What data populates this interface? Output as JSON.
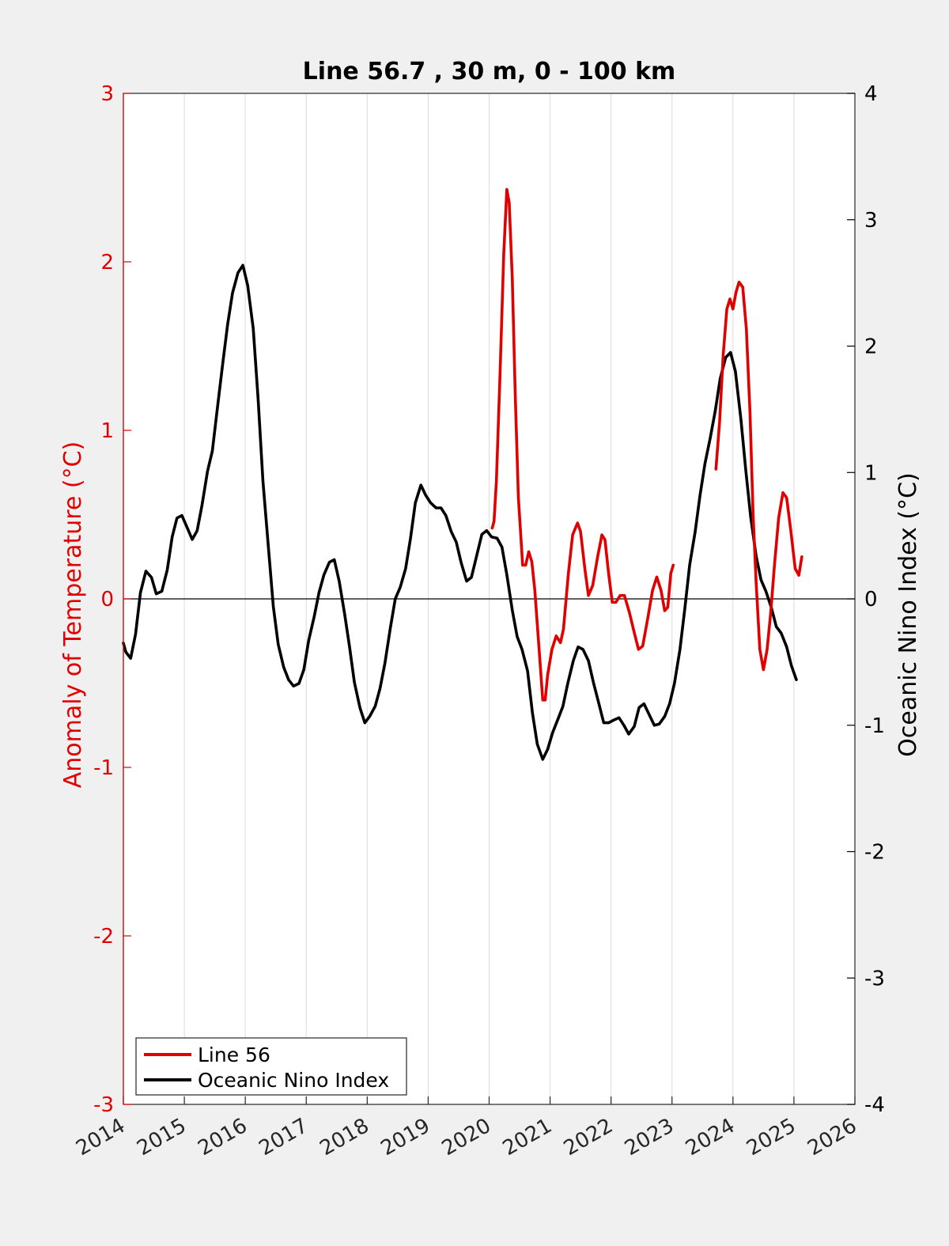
{
  "chart_data": {
    "type": "line",
    "title": "Line 56.7 , 30 m, 0 - 100 km",
    "ylabel_left": "Anomaly of Temperature (°C)",
    "ylabel_right": "Oceanic Nino Index (°C)",
    "xlim": [
      2014,
      2026
    ],
    "ylim_left": [
      -3,
      3
    ],
    "ylim_right": [
      -4,
      4
    ],
    "x_ticks": [
      "2014",
      "2015",
      "2016",
      "2017",
      "2018",
      "2019",
      "2020",
      "2021",
      "2022",
      "2023",
      "2024",
      "2025",
      "2026"
    ],
    "y_left_ticks": [
      "-3",
      "-2",
      "-1",
      "0",
      "1",
      "2",
      "3"
    ],
    "y_right_ticks": [
      "-4",
      "-3",
      "-2",
      "-1",
      "0",
      "1",
      "2",
      "3",
      "4"
    ],
    "grid": "vertical",
    "legend_position": "bottom-left",
    "colors": {
      "line56": "#e00000",
      "oni": "#000000",
      "left_axis": "#e00000",
      "right_axis": "#000000"
    },
    "series": [
      {
        "name": "Line 56",
        "axis": "left",
        "segments": [
          [
            [
              2020.05,
              0.42
            ],
            [
              2020.08,
              0.46
            ],
            [
              2020.12,
              0.7
            ],
            [
              2020.18,
              1.35
            ],
            [
              2020.24,
              2.05
            ],
            [
              2020.29,
              2.43
            ],
            [
              2020.33,
              2.35
            ],
            [
              2020.38,
              1.9
            ],
            [
              2020.43,
              1.2
            ],
            [
              2020.48,
              0.6
            ],
            [
              2020.55,
              0.2
            ],
            [
              2020.6,
              0.2
            ],
            [
              2020.65,
              0.28
            ],
            [
              2020.7,
              0.22
            ],
            [
              2020.75,
              0.05
            ],
            [
              2020.82,
              -0.3
            ],
            [
              2020.88,
              -0.6
            ],
            [
              2020.92,
              -0.6
            ],
            [
              2020.96,
              -0.45
            ],
            [
              2021.03,
              -0.3
            ],
            [
              2021.1,
              -0.22
            ],
            [
              2021.17,
              -0.26
            ],
            [
              2021.22,
              -0.18
            ],
            [
              2021.3,
              0.15
            ],
            [
              2021.37,
              0.38
            ],
            [
              2021.45,
              0.45
            ],
            [
              2021.5,
              0.4
            ],
            [
              2021.57,
              0.18
            ],
            [
              2021.63,
              0.02
            ],
            [
              2021.7,
              0.08
            ],
            [
              2021.78,
              0.25
            ],
            [
              2021.85,
              0.38
            ],
            [
              2021.9,
              0.35
            ],
            [
              2021.96,
              0.15
            ],
            [
              2022.02,
              -0.02
            ],
            [
              2022.08,
              -0.02
            ],
            [
              2022.15,
              0.02
            ],
            [
              2022.22,
              0.02
            ],
            [
              2022.3,
              -0.08
            ],
            [
              2022.38,
              -0.2
            ],
            [
              2022.45,
              -0.3
            ],
            [
              2022.52,
              -0.28
            ],
            [
              2022.6,
              -0.12
            ],
            [
              2022.68,
              0.05
            ],
            [
              2022.75,
              0.13
            ],
            [
              2022.82,
              0.05
            ],
            [
              2022.88,
              -0.07
            ],
            [
              2022.93,
              -0.05
            ],
            [
              2022.98,
              0.15
            ],
            [
              2023.02,
              0.2
            ]
          ],
          [
            [
              2023.72,
              0.77
            ],
            [
              2023.78,
              1.05
            ],
            [
              2023.84,
              1.45
            ],
            [
              2023.9,
              1.72
            ],
            [
              2023.95,
              1.78
            ],
            [
              2024.0,
              1.72
            ],
            [
              2024.05,
              1.82
            ],
            [
              2024.1,
              1.88
            ],
            [
              2024.16,
              1.85
            ],
            [
              2024.22,
              1.6
            ],
            [
              2024.28,
              1.1
            ],
            [
              2024.33,
              0.5
            ],
            [
              2024.38,
              0.1
            ],
            [
              2024.44,
              -0.3
            ],
            [
              2024.5,
              -0.42
            ],
            [
              2024.56,
              -0.3
            ],
            [
              2024.62,
              -0.08
            ],
            [
              2024.68,
              0.2
            ],
            [
              2024.75,
              0.48
            ],
            [
              2024.82,
              0.63
            ],
            [
              2024.88,
              0.6
            ],
            [
              2024.95,
              0.4
            ],
            [
              2025.02,
              0.18
            ],
            [
              2025.08,
              0.14
            ],
            [
              2025.13,
              0.25
            ]
          ]
        ]
      },
      {
        "name": "Oceanic Nino Index",
        "axis": "right",
        "segments": [
          [
            [
              2014.0,
              -0.35
            ],
            [
              2014.04,
              -0.42
            ],
            [
              2014.12,
              -0.47
            ],
            [
              2014.2,
              -0.28
            ],
            [
              2014.28,
              0.05
            ],
            [
              2014.37,
              0.22
            ],
            [
              2014.46,
              0.17
            ],
            [
              2014.54,
              0.04
            ],
            [
              2014.63,
              0.06
            ],
            [
              2014.72,
              0.23
            ],
            [
              2014.8,
              0.49
            ],
            [
              2014.88,
              0.64
            ],
            [
              2014.96,
              0.66
            ],
            [
              2015.05,
              0.56
            ],
            [
              2015.13,
              0.47
            ],
            [
              2015.21,
              0.54
            ],
            [
              2015.29,
              0.74
            ],
            [
              2015.38,
              1.01
            ],
            [
              2015.46,
              1.17
            ],
            [
              2015.54,
              1.5
            ],
            [
              2015.63,
              1.86
            ],
            [
              2015.71,
              2.17
            ],
            [
              2015.79,
              2.42
            ],
            [
              2015.88,
              2.58
            ],
            [
              2015.96,
              2.64
            ],
            [
              2016.04,
              2.48
            ],
            [
              2016.13,
              2.14
            ],
            [
              2016.21,
              1.58
            ],
            [
              2016.29,
              0.93
            ],
            [
              2016.38,
              0.4
            ],
            [
              2016.46,
              -0.06
            ],
            [
              2016.54,
              -0.36
            ],
            [
              2016.63,
              -0.54
            ],
            [
              2016.71,
              -0.64
            ],
            [
              2016.79,
              -0.69
            ],
            [
              2016.88,
              -0.67
            ],
            [
              2016.96,
              -0.56
            ],
            [
              2017.04,
              -0.33
            ],
            [
              2017.13,
              -0.14
            ],
            [
              2017.21,
              0.05
            ],
            [
              2017.29,
              0.19
            ],
            [
              2017.38,
              0.29
            ],
            [
              2017.46,
              0.31
            ],
            [
              2017.54,
              0.14
            ],
            [
              2017.63,
              -0.12
            ],
            [
              2017.71,
              -0.38
            ],
            [
              2017.79,
              -0.66
            ],
            [
              2017.88,
              -0.86
            ],
            [
              2017.96,
              -0.98
            ],
            [
              2018.04,
              -0.93
            ],
            [
              2018.13,
              -0.85
            ],
            [
              2018.21,
              -0.71
            ],
            [
              2018.29,
              -0.51
            ],
            [
              2018.38,
              -0.23
            ],
            [
              2018.46,
              0.0
            ],
            [
              2018.54,
              0.09
            ],
            [
              2018.63,
              0.24
            ],
            [
              2018.71,
              0.48
            ],
            [
              2018.79,
              0.76
            ],
            [
              2018.88,
              0.9
            ],
            [
              2018.96,
              0.82
            ],
            [
              2019.04,
              0.76
            ],
            [
              2019.13,
              0.72
            ],
            [
              2019.21,
              0.72
            ],
            [
              2019.29,
              0.66
            ],
            [
              2019.38,
              0.53
            ],
            [
              2019.46,
              0.45
            ],
            [
              2019.54,
              0.29
            ],
            [
              2019.63,
              0.14
            ],
            [
              2019.71,
              0.17
            ],
            [
              2019.79,
              0.33
            ],
            [
              2019.88,
              0.51
            ],
            [
              2019.96,
              0.54
            ],
            [
              2020.04,
              0.49
            ],
            [
              2020.13,
              0.48
            ],
            [
              2020.21,
              0.41
            ],
            [
              2020.29,
              0.19
            ],
            [
              2020.38,
              -0.09
            ],
            [
              2020.46,
              -0.3
            ],
            [
              2020.54,
              -0.4
            ],
            [
              2020.63,
              -0.57
            ],
            [
              2020.71,
              -0.9
            ],
            [
              2020.79,
              -1.15
            ],
            [
              2020.88,
              -1.27
            ],
            [
              2020.96,
              -1.19
            ],
            [
              2021.04,
              -1.06
            ],
            [
              2021.13,
              -0.95
            ],
            [
              2021.21,
              -0.85
            ],
            [
              2021.29,
              -0.67
            ],
            [
              2021.38,
              -0.49
            ],
            [
              2021.46,
              -0.38
            ],
            [
              2021.54,
              -0.4
            ],
            [
              2021.63,
              -0.49
            ],
            [
              2021.71,
              -0.66
            ],
            [
              2021.79,
              -0.81
            ],
            [
              2021.88,
              -0.98
            ],
            [
              2021.96,
              -0.98
            ],
            [
              2022.04,
              -0.96
            ],
            [
              2022.13,
              -0.94
            ],
            [
              2022.21,
              -1.0
            ],
            [
              2022.29,
              -1.07
            ],
            [
              2022.38,
              -1.01
            ],
            [
              2022.46,
              -0.86
            ],
            [
              2022.54,
              -0.83
            ],
            [
              2022.63,
              -0.92
            ],
            [
              2022.71,
              -1.0
            ],
            [
              2022.79,
              -0.99
            ],
            [
              2022.88,
              -0.93
            ],
            [
              2022.96,
              -0.83
            ],
            [
              2023.04,
              -0.67
            ],
            [
              2023.13,
              -0.4
            ],
            [
              2023.21,
              -0.08
            ],
            [
              2023.29,
              0.27
            ],
            [
              2023.38,
              0.53
            ],
            [
              2023.46,
              0.82
            ],
            [
              2023.54,
              1.07
            ],
            [
              2023.63,
              1.28
            ],
            [
              2023.71,
              1.49
            ],
            [
              2023.79,
              1.74
            ],
            [
              2023.88,
              1.91
            ],
            [
              2023.96,
              1.95
            ],
            [
              2024.04,
              1.8
            ],
            [
              2024.13,
              1.42
            ],
            [
              2024.21,
              1.02
            ],
            [
              2024.29,
              0.65
            ],
            [
              2024.38,
              0.34
            ],
            [
              2024.46,
              0.15
            ],
            [
              2024.54,
              0.06
            ],
            [
              2024.63,
              -0.07
            ],
            [
              2024.71,
              -0.22
            ],
            [
              2024.79,
              -0.27
            ],
            [
              2024.88,
              -0.38
            ],
            [
              2024.96,
              -0.53
            ],
            [
              2025.04,
              -0.64
            ]
          ]
        ]
      }
    ]
  }
}
